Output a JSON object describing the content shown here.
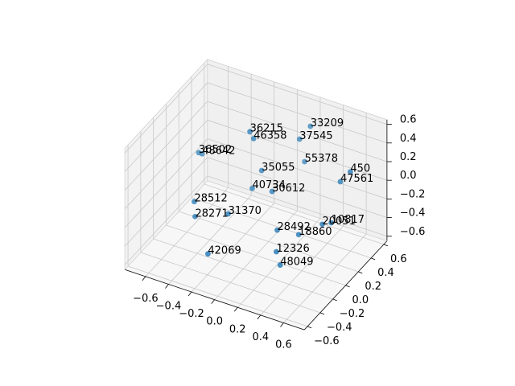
{
  "chart_data": {
    "type": "scatter3d",
    "color": "#1f77b4",
    "labels": [
      "36215",
      "46358",
      "33209",
      "37545",
      "36502",
      "48642",
      "55378",
      "450",
      "47561",
      "35055",
      "40734",
      "30612",
      "28512",
      "28271",
      "31370",
      "28492",
      "20051",
      "10817",
      "18860",
      "42069",
      "12326",
      "48049"
    ],
    "x": [
      -0.14,
      -0.13,
      0.17,
      0.12,
      -0.58,
      -0.55,
      0.12,
      0.6,
      0.48,
      -0.11,
      -0.12,
      0.03,
      -0.48,
      -0.44,
      -0.18,
      0.13,
      0.45,
      0.5,
      0.3,
      -0.24,
      0.2,
      0.25
    ],
    "y": [
      0.16,
      0.2,
      0.55,
      0.47,
      0.15,
      0.15,
      0.55,
      0.4,
      0.46,
      0.29,
      0.16,
      0.2,
      -0.1,
      -0.16,
      -0.11,
      0.1,
      0.23,
      0.28,
      0.13,
      -0.32,
      -0.04,
      -0.07
    ],
    "z": [
      0.5,
      0.4,
      0.4,
      0.3,
      0.1,
      0.1,
      0,
      0.2,
      0,
      0,
      -0.1,
      -0.1,
      -0.2,
      -0.3,
      -0.2,
      -0.4,
      -0.3,
      -0.3,
      -0.4,
      -0.5,
      -0.5,
      -0.6
    ],
    "xlim": [
      -0.78,
      0.78
    ],
    "ylim": [
      -0.65,
      0.65
    ],
    "zlim": [
      -0.65,
      0.65
    ],
    "xticks": [
      {
        "value": -0.6,
        "label": "−0.6"
      },
      {
        "value": -0.4,
        "label": "−0.4"
      },
      {
        "value": -0.2,
        "label": "−0.2"
      },
      {
        "value": 0,
        "label": "0.0"
      },
      0.2,
      0.4,
      0.6
    ],
    "yticks": [
      {
        "value": -0.6,
        "label": "−0.6"
      },
      {
        "value": -0.4,
        "label": "−0.4"
      },
      {
        "value": -0.2,
        "label": "−0.2"
      },
      {
        "value": 0,
        "label": "0.0"
      },
      0.2,
      0.4,
      0.6
    ],
    "zticks": [
      {
        "value": -0.6,
        "label": "−0.6"
      },
      {
        "value": -0.4,
        "label": "−0.4"
      },
      {
        "value": -0.2,
        "label": "−0.2"
      },
      {
        "value": 0,
        "label": "0.0"
      },
      0.2,
      0.4,
      0.6
    ],
    "grid": true
  }
}
